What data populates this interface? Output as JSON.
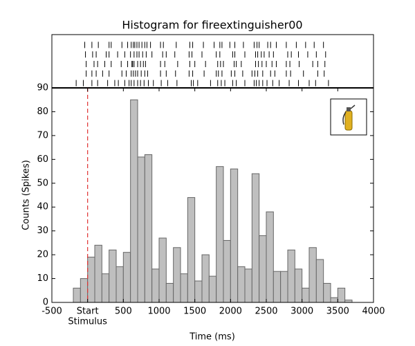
{
  "chart_data": {
    "type": "histogram",
    "title": "Histogram for fireextinguisher00",
    "xlabel": "Time (ms)",
    "ylabel": "Counts (Spikes)",
    "annotation": "Stimulus",
    "bins": [
      -200,
      -100,
      0,
      100,
      200,
      300,
      400,
      500,
      600,
      700,
      800,
      900,
      1000,
      1100,
      1200,
      1300,
      1400,
      1500,
      1600,
      1700,
      1800,
      1900,
      2000,
      2100,
      2200,
      2300,
      2400,
      2500,
      2600,
      2700,
      2800,
      2900,
      3000,
      3100,
      3200,
      3300,
      3400,
      3500,
      3600,
      3700
    ],
    "values": [
      6,
      10,
      19,
      24,
      12,
      22,
      15,
      21,
      85,
      61,
      62,
      14,
      27,
      8,
      23,
      12,
      44,
      9,
      20,
      11,
      57,
      26,
      56,
      15,
      14,
      54,
      28,
      38,
      13,
      13,
      22,
      14,
      6,
      23,
      18,
      8,
      2,
      6,
      1
    ],
    "color": "#bfbfbf",
    "xlim": [
      -500,
      4000
    ],
    "xticks": [
      -500,
      {
        "value": 0,
        "label": "Start"
      },
      500,
      1000,
      1500,
      2000,
      2500,
      3000,
      3500,
      4000
    ],
    "ylim": [
      0,
      90
    ],
    "yticks": [
      0,
      10,
      20,
      30,
      40,
      50,
      60,
      70,
      80,
      90
    ],
    "raster": [
      [
        -40,
        60,
        150,
        300,
        330,
        480,
        560,
        610,
        640,
        660,
        690,
        720,
        760,
        800,
        830,
        880,
        1020,
        1060,
        1240,
        1430,
        1470,
        1620,
        1770,
        1850,
        1880,
        1990,
        2060,
        2180,
        2330,
        2370,
        2400,
        2520,
        2560,
        2640,
        2780,
        2920,
        3050,
        3170,
        3300
      ],
      [
        -30,
        70,
        120,
        260,
        300,
        420,
        520,
        600,
        650,
        690,
        720,
        770,
        820,
        900,
        1050,
        1100,
        1220,
        1420,
        1460,
        1600,
        1800,
        1850,
        2030,
        2060,
        2200,
        2350,
        2380,
        2430,
        2470,
        2540,
        2600,
        2800,
        2850,
        2950,
        3080,
        3200,
        3330
      ],
      [
        -20,
        90,
        140,
        240,
        330,
        470,
        560,
        620,
        630,
        650,
        700,
        740,
        780,
        810,
        1020,
        1080,
        1260,
        1430,
        1500,
        1650,
        1820,
        1860,
        1900,
        2050,
        2080,
        2150,
        2350,
        2390,
        2440,
        2500,
        2580,
        2640,
        2780,
        2830,
        2960,
        3150,
        3220,
        3320
      ],
      [
        -20,
        60,
        120,
        210,
        300,
        480,
        540,
        610,
        640,
        670,
        700,
        750,
        800,
        840,
        1020,
        1100,
        1230,
        1420,
        1470,
        1630,
        1800,
        1830,
        1880,
        2010,
        2060,
        2170,
        2300,
        2340,
        2380,
        2450,
        2560,
        2620,
        2780,
        2840,
        3020,
        3220,
        3310
      ],
      [
        -160,
        -60,
        60,
        140,
        280,
        380,
        430,
        520,
        580,
        610,
        650,
        700,
        740,
        790,
        850,
        920,
        1030,
        1120,
        1250,
        1450,
        1480,
        1540,
        1720,
        1820,
        1870,
        1920,
        2030,
        2080,
        2200,
        2330,
        2360,
        2400,
        2450,
        2510,
        2590,
        2680,
        2820,
        2950,
        3100,
        3190,
        3370
      ]
    ]
  }
}
